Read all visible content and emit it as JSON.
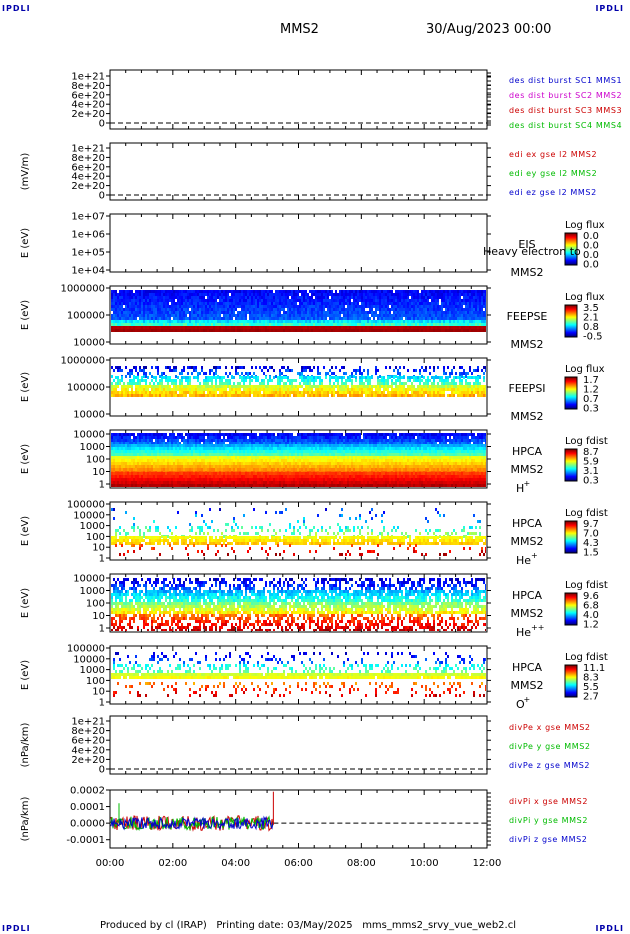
{
  "corner_marks": {
    "tl": "IPDLI",
    "tr": "IPDLI",
    "bl": "IPDLI",
    "br": "IPDLI"
  },
  "header": {
    "spacecraft": "MMS2",
    "datetime": "30/Aug/2023 00:00"
  },
  "footer": {
    "text": "Produced by cl (IRAP)   Printing date: 03/May/2025   mms_mms2_srvy_vue_web2.cl"
  },
  "colors": {
    "red": "#cc0000",
    "green": "#00bb00",
    "blue": "#0000cc",
    "magenta": "#cc00cc"
  },
  "chart_data": [
    {
      "type": "line",
      "id": "dist",
      "ylabel": "",
      "yticks": [
        "1e+21",
        "8e+20",
        "6e+20",
        "4e+20",
        "2e+20",
        "0"
      ],
      "legend": [
        {
          "text": "des dist burst SC1 MMS1",
          "color": "#0000cc"
        },
        {
          "text": "des dist burst SC2 MMS2",
          "color": "#cc00cc"
        },
        {
          "text": "des dist burst SC3 MMS3",
          "color": "#cc0000"
        },
        {
          "text": "des dist burst SC4 MMS4",
          "color": "#00bb00"
        }
      ],
      "series": [],
      "zero_line": true
    },
    {
      "type": "line",
      "id": "edi",
      "ylabel": "(mV/m)",
      "yticks": [
        "1e+21",
        "8e+20",
        "6e+20",
        "4e+20",
        "2e+20",
        "0"
      ],
      "legend": [
        {
          "text": "edi ex gse l2 MMS2",
          "color": "#cc0000"
        },
        {
          "text": "edi ey gse l2 MMS2",
          "color": "#00bb00"
        },
        {
          "text": "edi ez gse l2 MMS2",
          "color": "#0000cc"
        }
      ],
      "series": [],
      "zero_line": true
    },
    {
      "type": "heatmap",
      "id": "eis",
      "ylabel": "E (eV)",
      "yticks": [
        "1e+07",
        "1e+06",
        "1e+05",
        "1e+04"
      ],
      "labels": [
        "EIS",
        "MMS2"
      ],
      "overlay": "Heavy electron to",
      "cbar_title": "Log flux",
      "cbar_ticks": [
        "0.0",
        "0.0",
        "0.0",
        "0.0"
      ],
      "empty": true
    },
    {
      "type": "heatmap",
      "id": "feepse",
      "ylabel": "E (eV)",
      "yticks": [
        "1000000",
        "100000",
        "10000"
      ],
      "labels": [
        "FEEPSE",
        "MMS2"
      ],
      "cbar_title": "Log flux",
      "cbar_ticks": [
        "3.5",
        "2.1",
        "0.8",
        "-0.5"
      ]
    },
    {
      "type": "heatmap",
      "id": "feepsi",
      "ylabel": "E (eV)",
      "yticks": [
        "1000000",
        "100000",
        "10000"
      ],
      "labels": [
        "FEEPSI",
        "MMS2"
      ],
      "cbar_title": "Log flux",
      "cbar_ticks": [
        "1.7",
        "1.2",
        "0.7",
        "0.3"
      ]
    },
    {
      "type": "heatmap",
      "id": "hpca_h",
      "ylabel": "E (eV)",
      "yticks": [
        "10000",
        "1000",
        "100",
        "10",
        "1"
      ],
      "labels": [
        "HPCA",
        "MMS2"
      ],
      "species": "H",
      "species_sup": "+",
      "cbar_title": "Log fdist",
      "cbar_ticks": [
        "8.7",
        "5.9",
        "3.1",
        "0.3"
      ]
    },
    {
      "type": "heatmap",
      "id": "hpca_he",
      "ylabel": "E (eV)",
      "yticks": [
        "100000",
        "10000",
        "1000",
        "100",
        "10",
        "1"
      ],
      "labels": [
        "HPCA",
        "MMS2"
      ],
      "species": "He",
      "species_sup": "+",
      "cbar_title": "Log fdist",
      "cbar_ticks": [
        "9.7",
        "7.0",
        "4.3",
        "1.5"
      ]
    },
    {
      "type": "heatmap",
      "id": "hpca_hepp",
      "ylabel": "E (eV)",
      "yticks": [
        "10000",
        "1000",
        "100",
        "10",
        "1"
      ],
      "labels": [
        "HPCA",
        "MMS2"
      ],
      "species": "He",
      "species_sup": "++",
      "cbar_title": "Log fdist",
      "cbar_ticks": [
        "9.6",
        "6.8",
        "4.0",
        "1.2"
      ]
    },
    {
      "type": "heatmap",
      "id": "hpca_o",
      "ylabel": "E (eV)",
      "yticks": [
        "100000",
        "10000",
        "1000",
        "100",
        "10",
        "1"
      ],
      "labels": [
        "HPCA",
        "MMS2"
      ],
      "species": "O",
      "species_sup": "+",
      "cbar_title": "Log fdist",
      "cbar_ticks": [
        "11.1",
        "8.3",
        "5.5",
        "2.7"
      ]
    },
    {
      "type": "line",
      "id": "divpe",
      "ylabel": "(nPa/km)",
      "yticks": [
        "1e+21",
        "8e+20",
        "6e+20",
        "4e+20",
        "2e+20",
        "0"
      ],
      "legend": [
        {
          "text": "divPe x gse MMS2",
          "color": "#cc0000"
        },
        {
          "text": "divPe y gse MMS2",
          "color": "#00bb00"
        },
        {
          "text": "divPe z gse MMS2",
          "color": "#0000cc"
        }
      ],
      "series": [],
      "zero_line": true
    },
    {
      "type": "line",
      "id": "divpi",
      "ylabel": "(nPa/km)",
      "yticks": [
        "0.0002",
        "0.0001",
        "0.0000",
        "-0.0001"
      ],
      "ylim": [
        -0.00015,
        0.0002
      ],
      "legend": [
        {
          "text": "divPi x gse MMS2",
          "color": "#cc0000"
        },
        {
          "text": "divPi y gse MMS2",
          "color": "#00bb00"
        },
        {
          "text": "divPi z gse MMS2",
          "color": "#0000cc"
        }
      ],
      "data_end_hour": 5.2,
      "zero_line": true
    }
  ],
  "x_axis": {
    "ticks": [
      "00:00",
      "02:00",
      "04:00",
      "06:00",
      "08:00",
      "10:00",
      "12:00"
    ],
    "range_hours": [
      0,
      12
    ]
  }
}
